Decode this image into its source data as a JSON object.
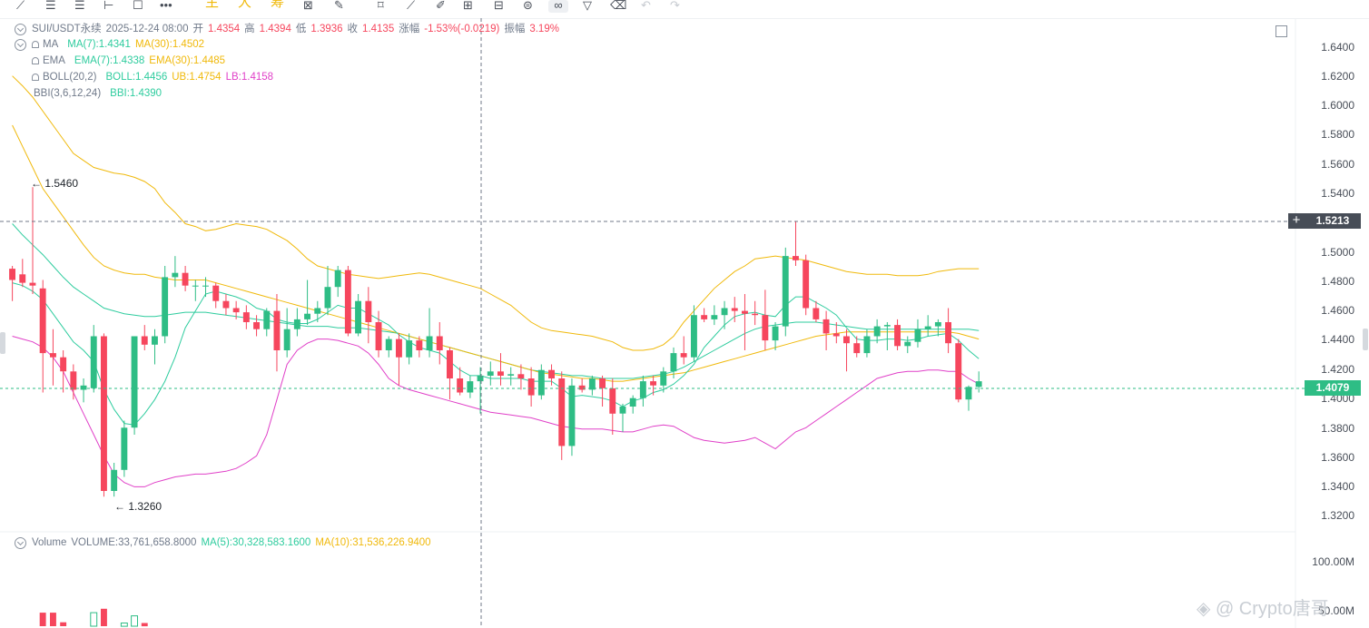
{
  "header": {
    "symbol": "SUI/USDT永续",
    "time": "2025-12-24 08:00",
    "open_label": "开",
    "open": "1.4354",
    "high_label": "高",
    "high": "1.4394",
    "low_label": "低",
    "low": "1.3936",
    "close_label": "收",
    "close": "1.4135",
    "change_label": "涨幅",
    "change": "-1.53%(-0.0219)",
    "amp_label": "振幅",
    "amp": "3.19%"
  },
  "indicators": {
    "ma_name": "MA",
    "ma7": "MA(7):1.4341",
    "ma30": "MA(30):1.4502",
    "ema_name": "EMA",
    "ema7": "EMA(7):1.4338",
    "ema30": "EMA(30):1.4485",
    "boll_name": "BOLL(20,2)",
    "boll": "BOLL:1.4456",
    "ub": "UB:1.4754",
    "lb": "LB:1.4158",
    "bbi_name": "BBI(3,6,12,24)",
    "bbi": "BBI:1.4390"
  },
  "volume_legend": {
    "name": "Volume",
    "volume": "VOLUME:33,761,658.8000",
    "ma5": "MA(5):30,328,583.1600",
    "ma10": "MA(10):31,536,226.9400"
  },
  "toolbar": {
    "cn_items": [
      "主",
      "大",
      "筹"
    ]
  },
  "price_axis": [
    "1.6400",
    "1.6200",
    "1.6000",
    "1.5800",
    "1.5600",
    "1.5400",
    "1.5000",
    "1.4800",
    "1.4600",
    "1.4400",
    "1.4200",
    "1.4000",
    "1.3800",
    "1.3600",
    "1.3400",
    "1.3200"
  ],
  "volume_axis": [
    "100.00M",
    "50.00M"
  ],
  "crosshair_price": "1.5213",
  "last_price": "1.4079",
  "high_marker": "← 1.5460",
  "low_marker": "← 1.3260",
  "watermark": "◈ @ Crypto唐哥",
  "colors": {
    "up": "#2ebd85",
    "down": "#f6465d",
    "ma7": "#f0b90b",
    "boll": "#e040c8",
    "bbi": "#2ecc9e"
  },
  "chart_data": {
    "type": "candlestick",
    "ylim": [
      1.31,
      1.65
    ],
    "volume_ylim": [
      0,
      100000000
    ],
    "candles": [
      {
        "o": 1.488,
        "h": 1.49,
        "l": 1.465,
        "c": 1.48
      },
      {
        "o": 1.484,
        "h": 1.495,
        "l": 1.475,
        "c": 1.478
      },
      {
        "o": 1.478,
        "h": 1.546,
        "l": 1.47,
        "c": 1.476
      },
      {
        "o": 1.474,
        "h": 1.48,
        "l": 1.4,
        "c": 1.428
      },
      {
        "o": 1.428,
        "h": 1.445,
        "l": 1.405,
        "c": 1.425
      },
      {
        "o": 1.425,
        "h": 1.43,
        "l": 1.4,
        "c": 1.415
      },
      {
        "o": 1.415,
        "h": 1.42,
        "l": 1.395,
        "c": 1.402
      },
      {
        "o": 1.402,
        "h": 1.41,
        "l": 1.393,
        "c": 1.405
      },
      {
        "o": 1.403,
        "h": 1.448,
        "l": 1.4,
        "c": 1.44
      },
      {
        "o": 1.44,
        "h": 1.442,
        "l": 1.326,
        "c": 1.33
      },
      {
        "o": 1.33,
        "h": 1.35,
        "l": 1.326,
        "c": 1.345
      },
      {
        "o": 1.345,
        "h": 1.38,
        "l": 1.34,
        "c": 1.375
      },
      {
        "o": 1.375,
        "h": 1.44,
        "l": 1.37,
        "c": 1.44
      },
      {
        "o": 1.44,
        "h": 1.448,
        "l": 1.43,
        "c": 1.434
      },
      {
        "o": 1.434,
        "h": 1.445,
        "l": 1.42,
        "c": 1.44
      },
      {
        "o": 1.44,
        "h": 1.49,
        "l": 1.435,
        "c": 1.482
      },
      {
        "o": 1.482,
        "h": 1.497,
        "l": 1.475,
        "c": 1.485
      },
      {
        "o": 1.485,
        "h": 1.49,
        "l": 1.472,
        "c": 1.476
      },
      {
        "o": 1.476,
        "h": 1.48,
        "l": 1.465,
        "c": 1.476
      },
      {
        "o": 1.476,
        "h": 1.482,
        "l": 1.468,
        "c": 1.476
      },
      {
        "o": 1.476,
        "h": 1.478,
        "l": 1.46,
        "c": 1.465
      },
      {
        "o": 1.465,
        "h": 1.47,
        "l": 1.455,
        "c": 1.46
      },
      {
        "o": 1.46,
        "h": 1.465,
        "l": 1.452,
        "c": 1.457
      },
      {
        "o": 1.457,
        "h": 1.462,
        "l": 1.445,
        "c": 1.45
      },
      {
        "o": 1.45,
        "h": 1.455,
        "l": 1.44,
        "c": 1.445
      },
      {
        "o": 1.445,
        "h": 1.46,
        "l": 1.44,
        "c": 1.458
      },
      {
        "o": 1.458,
        "h": 1.47,
        "l": 1.415,
        "c": 1.43
      },
      {
        "o": 1.43,
        "h": 1.46,
        "l": 1.425,
        "c": 1.445
      },
      {
        "o": 1.445,
        "h": 1.46,
        "l": 1.44,
        "c": 1.452
      },
      {
        "o": 1.452,
        "h": 1.48,
        "l": 1.448,
        "c": 1.456
      },
      {
        "o": 1.456,
        "h": 1.465,
        "l": 1.45,
        "c": 1.46
      },
      {
        "o": 1.46,
        "h": 1.49,
        "l": 1.455,
        "c": 1.475
      },
      {
        "o": 1.475,
        "h": 1.49,
        "l": 1.468,
        "c": 1.487
      },
      {
        "o": 1.487,
        "h": 1.49,
        "l": 1.44,
        "c": 1.442
      },
      {
        "o": 1.442,
        "h": 1.47,
        "l": 1.44,
        "c": 1.465
      },
      {
        "o": 1.465,
        "h": 1.475,
        "l": 1.435,
        "c": 1.45
      },
      {
        "o": 1.45,
        "h": 1.458,
        "l": 1.425,
        "c": 1.43
      },
      {
        "o": 1.43,
        "h": 1.44,
        "l": 1.425,
        "c": 1.438
      },
      {
        "o": 1.438,
        "h": 1.442,
        "l": 1.405,
        "c": 1.425
      },
      {
        "o": 1.425,
        "h": 1.442,
        "l": 1.42,
        "c": 1.437
      },
      {
        "o": 1.437,
        "h": 1.44,
        "l": 1.425,
        "c": 1.43
      },
      {
        "o": 1.43,
        "h": 1.46,
        "l": 1.425,
        "c": 1.44
      },
      {
        "o": 1.44,
        "h": 1.45,
        "l": 1.42,
        "c": 1.43
      },
      {
        "o": 1.43,
        "h": 1.432,
        "l": 1.395,
        "c": 1.41
      },
      {
        "o": 1.41,
        "h": 1.418,
        "l": 1.398,
        "c": 1.4
      },
      {
        "o": 1.4,
        "h": 1.412,
        "l": 1.396,
        "c": 1.408
      },
      {
        "o": 1.408,
        "h": 1.418,
        "l": 1.385,
        "c": 1.412
      },
      {
        "o": 1.412,
        "h": 1.422,
        "l": 1.405,
        "c": 1.415
      },
      {
        "o": 1.415,
        "h": 1.428,
        "l": 1.405,
        "c": 1.412
      },
      {
        "o": 1.412,
        "h": 1.418,
        "l": 1.405,
        "c": 1.413
      },
      {
        "o": 1.413,
        "h": 1.42,
        "l": 1.402,
        "c": 1.41
      },
      {
        "o": 1.41,
        "h": 1.418,
        "l": 1.39,
        "c": 1.398
      },
      {
        "o": 1.398,
        "h": 1.42,
        "l": 1.395,
        "c": 1.416
      },
      {
        "o": 1.416,
        "h": 1.42,
        "l": 1.405,
        "c": 1.41
      },
      {
        "o": 1.41,
        "h": 1.415,
        "l": 1.352,
        "c": 1.362
      },
      {
        "o": 1.362,
        "h": 1.41,
        "l": 1.355,
        "c": 1.405
      },
      {
        "o": 1.405,
        "h": 1.41,
        "l": 1.4,
        "c": 1.402
      },
      {
        "o": 1.402,
        "h": 1.412,
        "l": 1.398,
        "c": 1.41
      },
      {
        "o": 1.41,
        "h": 1.412,
        "l": 1.39,
        "c": 1.403
      },
      {
        "o": 1.403,
        "h": 1.41,
        "l": 1.37,
        "c": 1.385
      },
      {
        "o": 1.385,
        "h": 1.392,
        "l": 1.372,
        "c": 1.39
      },
      {
        "o": 1.39,
        "h": 1.398,
        "l": 1.385,
        "c": 1.396
      },
      {
        "o": 1.396,
        "h": 1.412,
        "l": 1.39,
        "c": 1.408
      },
      {
        "o": 1.408,
        "h": 1.412,
        "l": 1.398,
        "c": 1.405
      },
      {
        "o": 1.405,
        "h": 1.418,
        "l": 1.4,
        "c": 1.415
      },
      {
        "o": 1.415,
        "h": 1.432,
        "l": 1.41,
        "c": 1.428
      },
      {
        "o": 1.428,
        "h": 1.44,
        "l": 1.42,
        "c": 1.425
      },
      {
        "o": 1.425,
        "h": 1.462,
        "l": 1.422,
        "c": 1.455
      },
      {
        "o": 1.455,
        "h": 1.46,
        "l": 1.45,
        "c": 1.452
      },
      {
        "o": 1.452,
        "h": 1.462,
        "l": 1.448,
        "c": 1.455
      },
      {
        "o": 1.455,
        "h": 1.465,
        "l": 1.445,
        "c": 1.46
      },
      {
        "o": 1.46,
        "h": 1.468,
        "l": 1.45,
        "c": 1.458
      },
      {
        "o": 1.458,
        "h": 1.47,
        "l": 1.43,
        "c": 1.456
      },
      {
        "o": 1.456,
        "h": 1.465,
        "l": 1.448,
        "c": 1.455
      },
      {
        "o": 1.455,
        "h": 1.473,
        "l": 1.43,
        "c": 1.437
      },
      {
        "o": 1.437,
        "h": 1.45,
        "l": 1.43,
        "c": 1.447
      },
      {
        "o": 1.447,
        "h": 1.503,
        "l": 1.44,
        "c": 1.497
      },
      {
        "o": 1.497,
        "h": 1.522,
        "l": 1.49,
        "c": 1.494
      },
      {
        "o": 1.494,
        "h": 1.498,
        "l": 1.455,
        "c": 1.46
      },
      {
        "o": 1.46,
        "h": 1.465,
        "l": 1.45,
        "c": 1.452
      },
      {
        "o": 1.452,
        "h": 1.458,
        "l": 1.43,
        "c": 1.442
      },
      {
        "o": 1.442,
        "h": 1.45,
        "l": 1.435,
        "c": 1.44
      },
      {
        "o": 1.44,
        "h": 1.445,
        "l": 1.415,
        "c": 1.435
      },
      {
        "o": 1.435,
        "h": 1.44,
        "l": 1.425,
        "c": 1.428
      },
      {
        "o": 1.428,
        "h": 1.445,
        "l": 1.425,
        "c": 1.44
      },
      {
        "o": 1.44,
        "h": 1.452,
        "l": 1.435,
        "c": 1.447
      },
      {
        "o": 1.447,
        "h": 1.45,
        "l": 1.43,
        "c": 1.448
      },
      {
        "o": 1.448,
        "h": 1.452,
        "l": 1.43,
        "c": 1.433
      },
      {
        "o": 1.433,
        "h": 1.44,
        "l": 1.428,
        "c": 1.436
      },
      {
        "o": 1.436,
        "h": 1.452,
        "l": 1.432,
        "c": 1.445
      },
      {
        "o": 1.445,
        "h": 1.455,
        "l": 1.44,
        "c": 1.447
      },
      {
        "o": 1.447,
        "h": 1.452,
        "l": 1.44,
        "c": 1.45
      },
      {
        "o": 1.45,
        "h": 1.46,
        "l": 1.428,
        "c": 1.435
      },
      {
        "o": 1.435,
        "h": 1.438,
        "l": 1.393,
        "c": 1.395
      },
      {
        "o": 1.395,
        "h": 1.405,
        "l": 1.387,
        "c": 1.404
      },
      {
        "o": 1.404,
        "h": 1.415,
        "l": 1.4,
        "c": 1.408
      }
    ],
    "volumes": [
      0,
      0,
      0,
      21000000,
      21000000,
      6000000,
      0,
      0,
      21000000,
      27000000,
      0,
      5000000,
      16000000,
      5000000,
      0,
      0,
      0,
      0,
      0,
      0,
      0,
      0,
      0,
      0,
      0,
      0,
      0,
      0,
      0,
      0,
      0,
      0,
      0,
      0,
      0,
      0,
      0,
      0,
      0,
      0,
      0,
      0,
      0,
      0,
      0,
      0,
      0,
      0,
      0,
      0,
      0,
      0,
      0,
      0,
      0,
      0,
      0,
      0,
      0,
      0,
      0,
      0,
      0,
      0,
      0,
      0,
      0,
      0,
      0,
      0,
      0,
      0,
      0,
      0,
      0,
      0,
      0,
      0,
      0,
      0,
      0,
      0,
      0,
      0,
      0,
      0,
      0,
      0,
      0,
      0,
      0,
      0,
      0,
      0,
      0
    ],
    "ma7": [
      1.478,
      1.476,
      1.472,
      1.466,
      1.456,
      1.446,
      1.436,
      1.43,
      1.422,
      1.402,
      1.388,
      1.378,
      1.377,
      1.385,
      1.395,
      1.408,
      1.425,
      1.446,
      1.458,
      1.47,
      1.472,
      1.47,
      1.468,
      1.465,
      1.46,
      1.458,
      1.452,
      1.45,
      1.449,
      1.449,
      1.452,
      1.457,
      1.462,
      1.46,
      1.46,
      1.456,
      1.452,
      1.448,
      1.441,
      1.436,
      1.432,
      1.43,
      1.428,
      1.422,
      1.416,
      1.412,
      1.412,
      1.41,
      1.41,
      1.41,
      1.41,
      1.408,
      1.408,
      1.408,
      1.403,
      1.397,
      1.398,
      1.397,
      1.396,
      1.394,
      1.39,
      1.394,
      1.396,
      1.4,
      1.402,
      1.406,
      1.412,
      1.42,
      1.432,
      1.44,
      1.448,
      1.454,
      1.456,
      1.457,
      1.455,
      1.454,
      1.462,
      1.468,
      1.468,
      1.464,
      1.46,
      1.455,
      1.446,
      1.438,
      1.437,
      1.437,
      1.438,
      1.438,
      1.437,
      1.438,
      1.44,
      1.441,
      1.442,
      1.437,
      1.43,
      1.424
    ],
    "ma30": [
      1.59,
      1.575,
      1.56,
      1.545,
      1.535,
      1.525,
      1.515,
      1.505,
      1.496,
      1.49,
      1.487,
      1.485,
      1.484,
      1.484,
      1.482,
      1.481,
      1.48,
      1.48,
      1.48,
      1.48,
      1.478,
      1.476,
      1.474,
      1.472,
      1.47,
      1.468,
      1.466,
      1.464,
      1.462,
      1.46,
      1.458,
      1.456,
      1.454,
      1.452,
      1.45,
      1.448,
      1.446,
      1.444,
      1.442,
      1.44,
      1.438,
      1.436,
      1.434,
      1.432,
      1.43,
      1.428,
      1.426,
      1.424,
      1.422,
      1.42,
      1.418,
      1.416,
      1.414,
      1.413,
      1.412,
      1.411,
      1.41,
      1.41,
      1.409,
      1.408,
      1.408,
      1.409,
      1.41,
      1.411,
      1.412,
      1.413,
      1.414,
      1.416,
      1.418,
      1.42,
      1.422,
      1.424,
      1.426,
      1.428,
      1.43,
      1.432,
      1.434,
      1.436,
      1.438,
      1.44,
      1.441,
      1.442,
      1.443,
      1.443,
      1.443,
      1.443,
      1.443,
      1.443,
      1.443,
      1.443,
      1.443,
      1.443,
      1.443,
      1.442,
      1.44,
      1.438
    ],
    "boll_upper": [
      1.625,
      1.618,
      1.61,
      1.6,
      1.59,
      1.58,
      1.57,
      1.565,
      1.56,
      1.558,
      1.556,
      1.555,
      1.553,
      1.55,
      1.545,
      1.535,
      1.528,
      1.52,
      1.518,
      1.515,
      1.516,
      1.518,
      1.52,
      1.519,
      1.518,
      1.516,
      1.512,
      1.508,
      1.502,
      1.495,
      1.49,
      1.488,
      1.486,
      1.484,
      1.483,
      1.482,
      1.481,
      1.482,
      1.483,
      1.484,
      1.485,
      1.484,
      1.482,
      1.48,
      1.478,
      1.476,
      1.474,
      1.47,
      1.466,
      1.462,
      1.456,
      1.45,
      1.446,
      1.444,
      1.443,
      1.442,
      1.441,
      1.44,
      1.438,
      1.436,
      1.432,
      1.43,
      1.43,
      1.431,
      1.434,
      1.44,
      1.45,
      1.458,
      1.466,
      1.474,
      1.48,
      1.486,
      1.49,
      1.495,
      1.496,
      1.497,
      1.496,
      1.495,
      1.494,
      1.492,
      1.49,
      1.488,
      1.486,
      1.485,
      1.484,
      1.484,
      1.484,
      1.483,
      1.483,
      1.483,
      1.484,
      1.486,
      1.487,
      1.488,
      1.488,
      1.488
    ],
    "boll_mid": [
      1.52,
      1.512,
      1.505,
      1.498,
      1.49,
      1.482,
      1.475,
      1.47,
      1.465,
      1.46,
      1.458,
      1.456,
      1.455,
      1.454,
      1.454,
      1.455,
      1.456,
      1.457,
      1.457,
      1.457,
      1.456,
      1.455,
      1.454,
      1.453,
      1.452,
      1.451,
      1.45,
      1.449,
      1.448,
      1.447,
      1.447,
      1.447,
      1.446,
      1.446,
      1.446,
      1.445,
      1.444,
      1.443,
      1.442,
      1.44,
      1.438,
      1.436,
      1.434,
      1.432,
      1.43,
      1.428,
      1.426,
      1.424,
      1.422,
      1.42,
      1.418,
      1.416,
      1.415,
      1.414,
      1.413,
      1.412,
      1.412,
      1.411,
      1.41,
      1.41,
      1.41,
      1.41,
      1.411,
      1.412,
      1.413,
      1.415,
      1.418,
      1.422,
      1.426,
      1.43,
      1.434,
      1.438,
      1.442,
      1.445,
      1.447,
      1.448,
      1.449,
      1.45,
      1.45,
      1.45,
      1.449,
      1.448,
      1.447,
      1.446,
      1.445,
      1.445,
      1.445,
      1.445,
      1.445,
      1.445,
      1.445,
      1.445,
      1.445,
      1.445,
      1.445,
      1.444
    ],
    "boll_lower": [
      1.44,
      1.438,
      1.436,
      1.432,
      1.425,
      1.415,
      1.4,
      1.385,
      1.37,
      1.355,
      1.342,
      1.336,
      1.333,
      1.333,
      1.336,
      1.338,
      1.34,
      1.341,
      1.342,
      1.342,
      1.343,
      1.344,
      1.346,
      1.35,
      1.355,
      1.37,
      1.395,
      1.42,
      1.43,
      1.435,
      1.438,
      1.438,
      1.437,
      1.435,
      1.433,
      1.428,
      1.42,
      1.41,
      1.405,
      1.402,
      1.4,
      1.398,
      1.396,
      1.394,
      1.392,
      1.39,
      1.388,
      1.386,
      1.385,
      1.384,
      1.383,
      1.382,
      1.38,
      1.378,
      1.376,
      1.375,
      1.374,
      1.374,
      1.374,
      1.373,
      1.372,
      1.372,
      1.374,
      1.376,
      1.377,
      1.376,
      1.372,
      1.368,
      1.366,
      1.365,
      1.364,
      1.365,
      1.366,
      1.368,
      1.364,
      1.36,
      1.366,
      1.372,
      1.375,
      1.38,
      1.385,
      1.39,
      1.395,
      1.4,
      1.405,
      1.41,
      1.412,
      1.414,
      1.415,
      1.415,
      1.416,
      1.416,
      1.415,
      1.415,
      1.41,
      1.406
    ]
  }
}
